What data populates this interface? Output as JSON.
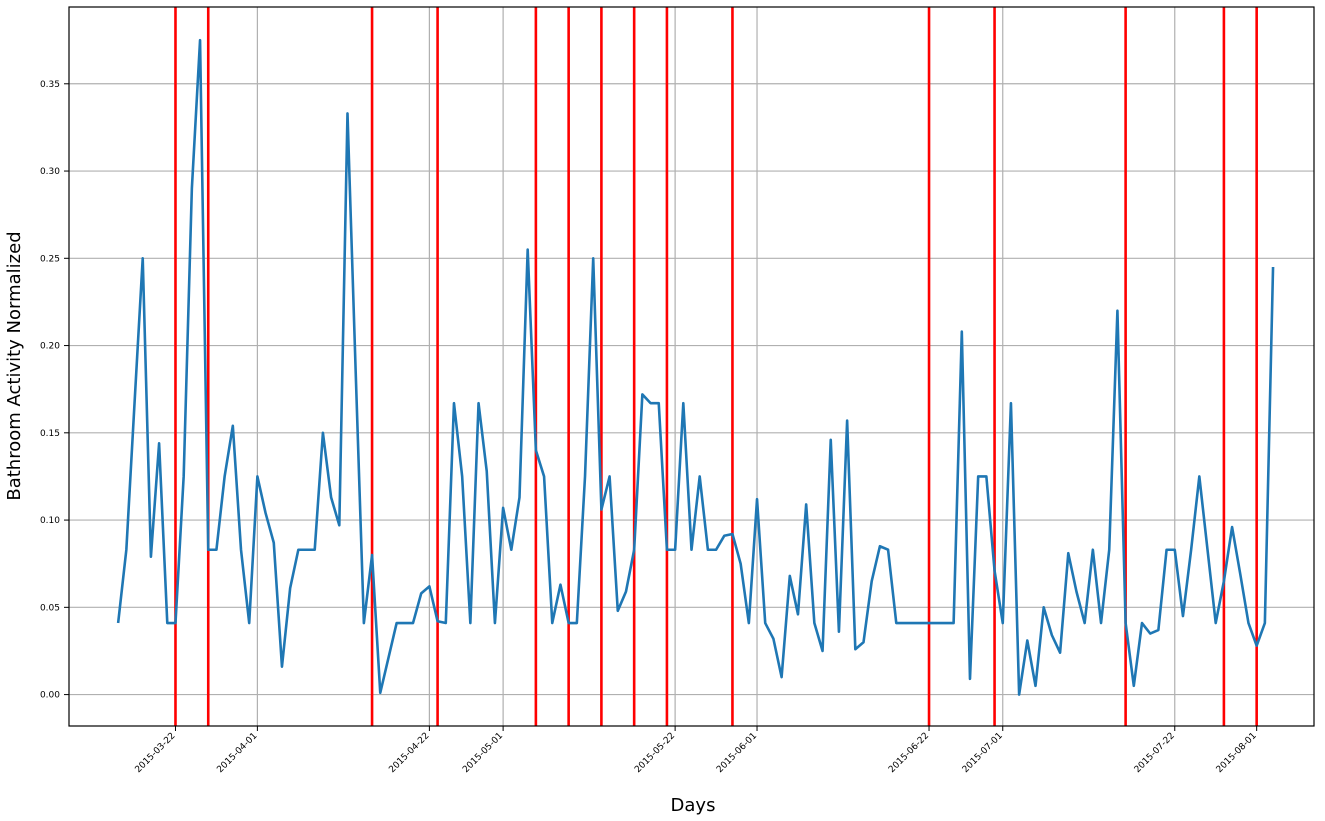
{
  "chart_data": {
    "type": "line",
    "xlabel": "Days",
    "ylabel": "Bathroom Activity Normalized",
    "x_start": "2015-03-15",
    "xlim": [
      "2015-03-09",
      "2015-08-08"
    ],
    "ylim": [
      -0.018,
      0.394
    ],
    "grid": true,
    "x_ticks": [
      "2015-03-22",
      "2015-04-01",
      "2015-04-22",
      "2015-05-01",
      "2015-05-22",
      "2015-06-01",
      "2015-06-22",
      "2015-07-01",
      "2015-07-22",
      "2015-08-01"
    ],
    "y_ticks": [
      "0.00",
      "0.05",
      "0.10",
      "0.15",
      "0.20",
      "0.25",
      "0.30",
      "0.35"
    ],
    "series": [
      {
        "color": "#1f77b4",
        "values": [
          0.041,
          0.083,
          0.167,
          0.25,
          0.079,
          0.144,
          0.041,
          0.041,
          0.125,
          0.29,
          0.375,
          0.083,
          0.083,
          0.125,
          0.154,
          0.083,
          0.041,
          0.125,
          0.104,
          0.087,
          0.016,
          0.061,
          0.083,
          0.083,
          0.083,
          0.15,
          0.113,
          0.097,
          0.333,
          0.185,
          0.041,
          0.08,
          0.001,
          0.021,
          0.041,
          0.041,
          0.041,
          0.058,
          0.062,
          0.042,
          0.041,
          0.167,
          0.125,
          0.041,
          0.167,
          0.128,
          0.041,
          0.107,
          0.083,
          0.113,
          0.255,
          0.14,
          0.125,
          0.041,
          0.063,
          0.041,
          0.041,
          0.125,
          0.25,
          0.106,
          0.125,
          0.048,
          0.059,
          0.083,
          0.172,
          0.167,
          0.167,
          0.083,
          0.083,
          0.167,
          0.083,
          0.125,
          0.083,
          0.083,
          0.091,
          0.092,
          0.075,
          0.041,
          0.112,
          0.041,
          0.032,
          0.01,
          0.068,
          0.046,
          0.109,
          0.041,
          0.025,
          0.146,
          0.036,
          0.157,
          0.026,
          0.03,
          0.065,
          0.085,
          0.083,
          0.041,
          0.041,
          0.041,
          0.041,
          0.041,
          0.041,
          0.041,
          0.041,
          0.208,
          0.009,
          0.125,
          0.125,
          0.071,
          0.041,
          0.167,
          0.0,
          0.031,
          0.005,
          0.05,
          0.034,
          0.024,
          0.081,
          0.059,
          0.041,
          0.083,
          0.041,
          0.083,
          0.22,
          0.041,
          0.005,
          0.041,
          0.035,
          0.037,
          0.083,
          0.083,
          0.045,
          0.083,
          0.125,
          0.083,
          0.041,
          0.065,
          0.096,
          0.069,
          0.041,
          0.028,
          0.041,
          0.245
        ]
      }
    ],
    "event_lines": {
      "color": "#ff0000",
      "dates": [
        "2015-03-22",
        "2015-03-26",
        "2015-04-15",
        "2015-04-23",
        "2015-05-05",
        "2015-05-09",
        "2015-05-13",
        "2015-05-17",
        "2015-05-21",
        "2015-05-29",
        "2015-06-22",
        "2015-06-30",
        "2015-07-16",
        "2015-07-28",
        "2015-08-01"
      ]
    }
  }
}
